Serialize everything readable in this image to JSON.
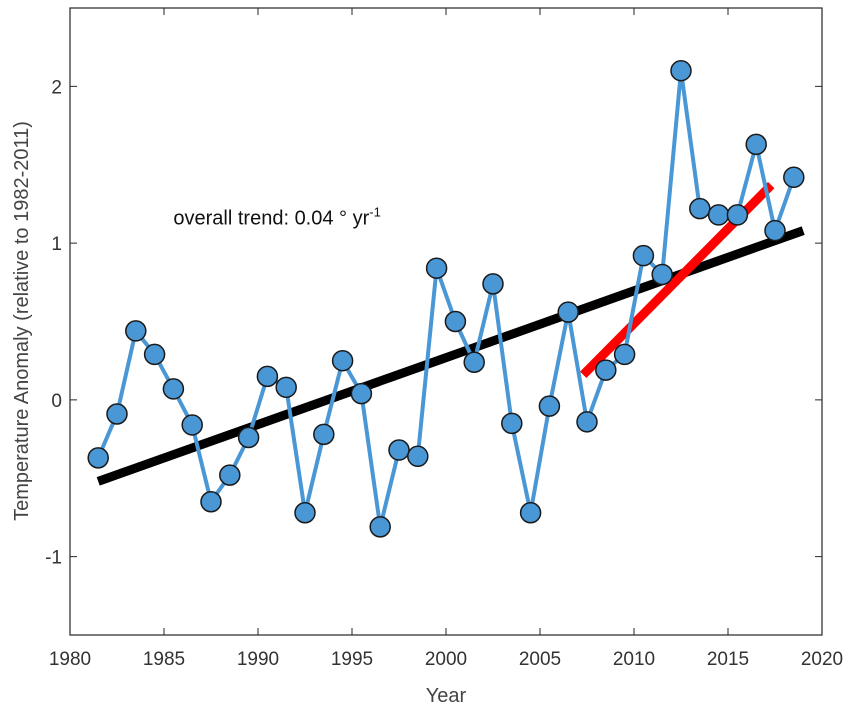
{
  "chart_data": {
    "type": "line",
    "title": "",
    "xlabel": "Year",
    "ylabel": "Temperature Anomaly (relative to 1982-2011)",
    "xlim": [
      1980,
      2020
    ],
    "ylim": [
      -1.5,
      2.5
    ],
    "xticks": [
      1980,
      1985,
      1990,
      1995,
      2000,
      2005,
      2010,
      2015,
      2020
    ],
    "yticks": [
      -1,
      0,
      1,
      2
    ],
    "grid": false,
    "series": [
      {
        "x": [
          1981.5,
          1982.5,
          1983.5,
          1984.5,
          1985.5,
          1986.5,
          1987.5,
          1988.5,
          1989.5,
          1990.5,
          1991.5,
          1992.5,
          1993.5,
          1994.5,
          1995.5,
          1996.5,
          1997.5,
          1998.5,
          1999.5,
          2000.5,
          2001.5,
          2002.5,
          2003.5,
          2004.5,
          2005.5,
          2006.5,
          2007.5,
          2008.5,
          2009.5,
          2010.5,
          2011.5,
          2012.5,
          2013.5,
          2014.5,
          2015.5,
          2016.5,
          2017.5,
          2018.5
        ],
        "y": [
          -0.37,
          -0.09,
          0.44,
          0.29,
          0.07,
          -0.16,
          -0.65,
          -0.48,
          -0.24,
          0.15,
          0.08,
          -0.72,
          -0.22,
          0.25,
          0.04,
          -0.81,
          -0.32,
          -0.36,
          0.84,
          0.5,
          0.24,
          0.74,
          -0.15,
          -0.72,
          -0.04,
          0.56,
          -0.14,
          0.19,
          0.29,
          0.92,
          0.8,
          2.1,
          1.22,
          1.18,
          1.18,
          1.63,
          1.08,
          1.42
        ],
        "color": "#4a97d6",
        "marker": "circle"
      }
    ],
    "trend_lines": [
      {
        "x": [
          1981.5,
          2019.0
        ],
        "y": [
          -0.52,
          1.08
        ],
        "color": "#000000"
      },
      {
        "x": [
          2007.3,
          2017.3
        ],
        "y": [
          0.16,
          1.37
        ],
        "color": "#ff0000"
      }
    ],
    "annotation": {
      "text": "overall trend: 0.04 ° yr",
      "superscript": "-1",
      "x": 1985.5,
      "y": 1.12
    }
  }
}
